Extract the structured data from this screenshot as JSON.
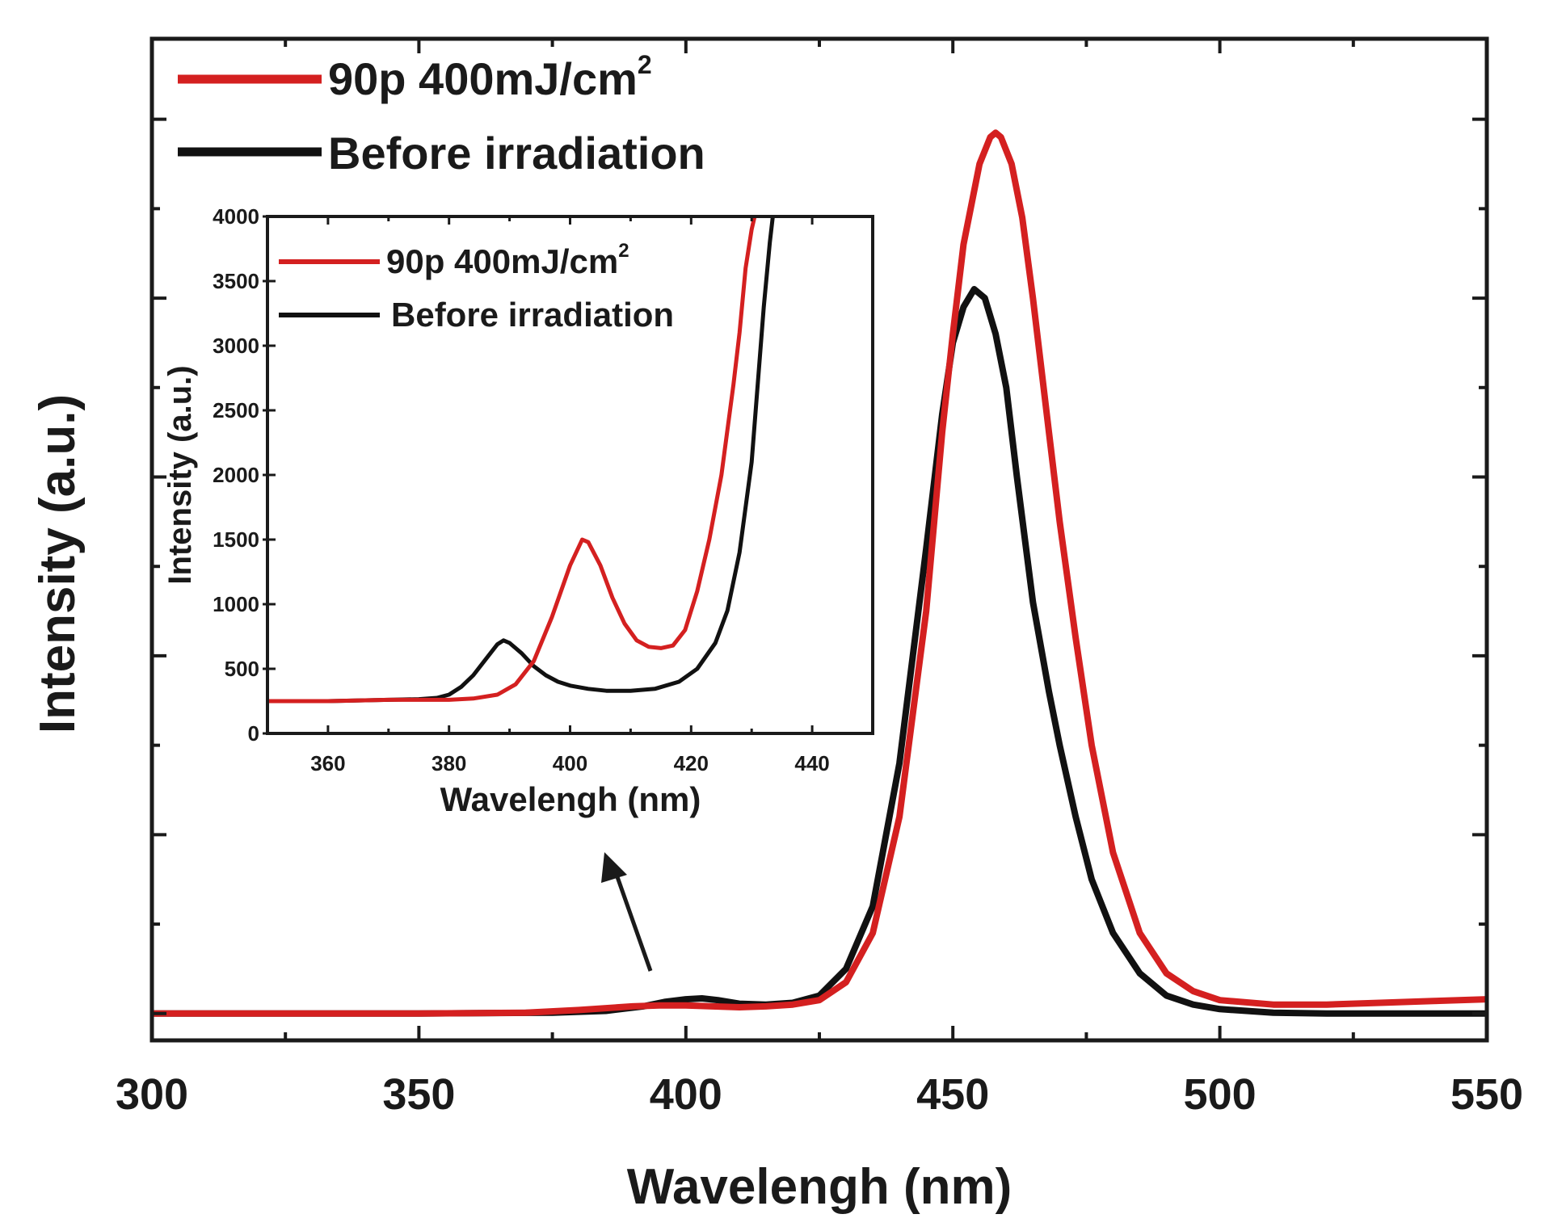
{
  "chart_data": [
    {
      "type": "line",
      "title": "",
      "xlabel": "Wavelengh (nm)",
      "ylabel": "Intensity (a.u.)",
      "xlim": [
        300,
        550
      ],
      "ylim": [
        -0.03,
        1.09
      ],
      "x_ticks": [
        300,
        350,
        400,
        450,
        500,
        550
      ],
      "x_tick_labels": [
        "300",
        "350",
        "400",
        "450",
        "500",
        "550"
      ],
      "y_tick_labels_shown": false,
      "legend": {
        "location": "top-left",
        "entries": [
          {
            "label_main": "90p 400mJ/cm",
            "label_sup": "2",
            "color": "#d42020"
          },
          {
            "label_main": "Before irradiation",
            "label_sup": "",
            "color": "#111111"
          }
        ]
      },
      "series": [
        {
          "name": "Before irradiation",
          "color": "#111111",
          "x": [
            300,
            350,
            375,
            385,
            392,
            396,
            400,
            403,
            406,
            410,
            415,
            420,
            425,
            430,
            435,
            440,
            445,
            448,
            450,
            452,
            454,
            456,
            458,
            460,
            462,
            465,
            468,
            470,
            473,
            476,
            480,
            485,
            490,
            495,
            500,
            510,
            520,
            530,
            540,
            550
          ],
          "values": [
            0.0,
            0.0,
            0.001,
            0.003,
            0.008,
            0.013,
            0.016,
            0.017,
            0.015,
            0.011,
            0.01,
            0.012,
            0.02,
            0.05,
            0.12,
            0.28,
            0.52,
            0.67,
            0.75,
            0.79,
            0.81,
            0.8,
            0.76,
            0.7,
            0.6,
            0.46,
            0.36,
            0.3,
            0.22,
            0.15,
            0.09,
            0.045,
            0.02,
            0.01,
            0.005,
            0.001,
            0.0,
            0.0,
            0.0,
            0.0
          ]
        },
        {
          "name": "90p 400mJ/cm2",
          "color": "#d42020",
          "x": [
            300,
            350,
            370,
            380,
            390,
            395,
            400,
            405,
            410,
            415,
            420,
            425,
            430,
            435,
            440,
            445,
            448,
            450,
            452,
            455,
            457,
            458,
            459,
            461,
            463,
            465,
            468,
            470,
            473,
            476,
            480,
            485,
            490,
            495,
            500,
            510,
            520,
            530,
            540,
            550
          ],
          "values": [
            0.0,
            0.0,
            0.001,
            0.004,
            0.008,
            0.009,
            0.009,
            0.008,
            0.007,
            0.008,
            0.01,
            0.015,
            0.035,
            0.09,
            0.22,
            0.45,
            0.65,
            0.76,
            0.86,
            0.95,
            0.98,
            0.985,
            0.98,
            0.95,
            0.89,
            0.8,
            0.65,
            0.55,
            0.42,
            0.3,
            0.18,
            0.09,
            0.045,
            0.025,
            0.015,
            0.01,
            0.01,
            0.012,
            0.014,
            0.016
          ]
        }
      ]
    },
    {
      "type": "line",
      "title": "",
      "xlabel": "Wavelengh (nm)",
      "ylabel": "Intensity (a.u.)",
      "xlim": [
        350,
        450
      ],
      "ylim": [
        0,
        4000
      ],
      "x_ticks": [
        360,
        380,
        400,
        420,
        440
      ],
      "x_tick_labels": [
        "360",
        "380",
        "400",
        "420",
        "440"
      ],
      "y_ticks": [
        0,
        500,
        1000,
        1500,
        2000,
        2500,
        3000,
        3500,
        4000
      ],
      "y_tick_labels": [
        "0",
        "500",
        "1000",
        "1500",
        "2000",
        "2500",
        "3000",
        "3500",
        "4000"
      ],
      "legend": {
        "location": "top-left",
        "entries": [
          {
            "label_main": "90p 400mJ/cm",
            "label_sup": "2",
            "color": "#d42020"
          },
          {
            "label_main": "Before irradiation",
            "label_sup": "",
            "color": "#111111"
          }
        ]
      },
      "series": [
        {
          "name": "Before irradiation",
          "color": "#111111",
          "x": [
            350,
            360,
            370,
            375,
            378,
            380,
            382,
            384,
            386,
            388,
            389,
            390,
            392,
            394,
            396,
            398,
            400,
            403,
            406,
            410,
            414,
            418,
            421,
            424,
            426,
            428,
            430,
            431,
            432,
            433,
            433.5
          ],
          "values": [
            250,
            250,
            260,
            265,
            275,
            300,
            360,
            450,
            570,
            690,
            720,
            700,
            620,
            520,
            450,
            400,
            370,
            345,
            330,
            330,
            345,
            400,
            500,
            700,
            950,
            1400,
            2100,
            2700,
            3300,
            3800,
            4000
          ]
        },
        {
          "name": "90p 400mJ/cm2",
          "color": "#d42020",
          "x": [
            350,
            360,
            370,
            380,
            384,
            388,
            391,
            394,
            397,
            400,
            402,
            403,
            405,
            407,
            409,
            411,
            413,
            415,
            417,
            419,
            421,
            423,
            425,
            427,
            428,
            429,
            430,
            430.5
          ],
          "values": [
            250,
            250,
            260,
            260,
            270,
            300,
            380,
            560,
            900,
            1300,
            1500,
            1480,
            1300,
            1050,
            850,
            720,
            670,
            660,
            680,
            800,
            1100,
            1500,
            2000,
            2700,
            3100,
            3600,
            3900,
            4000
          ]
        }
      ]
    }
  ]
}
